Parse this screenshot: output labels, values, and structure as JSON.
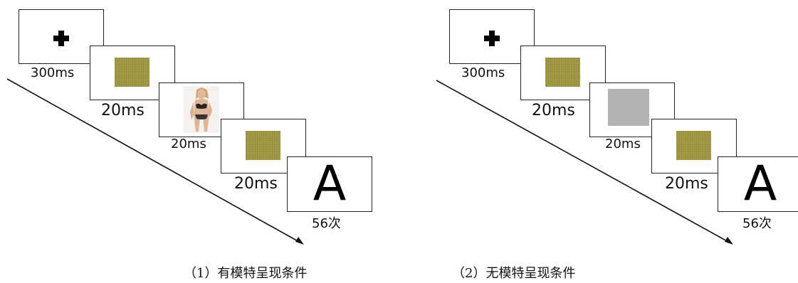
{
  "panels": [
    {
      "caption": "（1）有模特呈现条件",
      "fixation_symbol": "plus",
      "mask_color": "#a39a4a",
      "stimulus": "model-photo",
      "letter": "A",
      "labels": {
        "fixation": "300ms",
        "mask1": "20ms",
        "stimulus": "20ms",
        "mask2": "20ms",
        "count": "56次"
      }
    },
    {
      "caption": "（2）无模特呈现条件",
      "fixation_symbol": "plus",
      "mask_color": "#a39a4a",
      "stimulus": "gray-square",
      "stimulus_color": "#b3b3b3",
      "letter": "A",
      "labels": {
        "fixation": "300ms",
        "mask1": "20ms",
        "stimulus": "20ms",
        "mask2": "20ms",
        "count": "56次"
      }
    }
  ]
}
